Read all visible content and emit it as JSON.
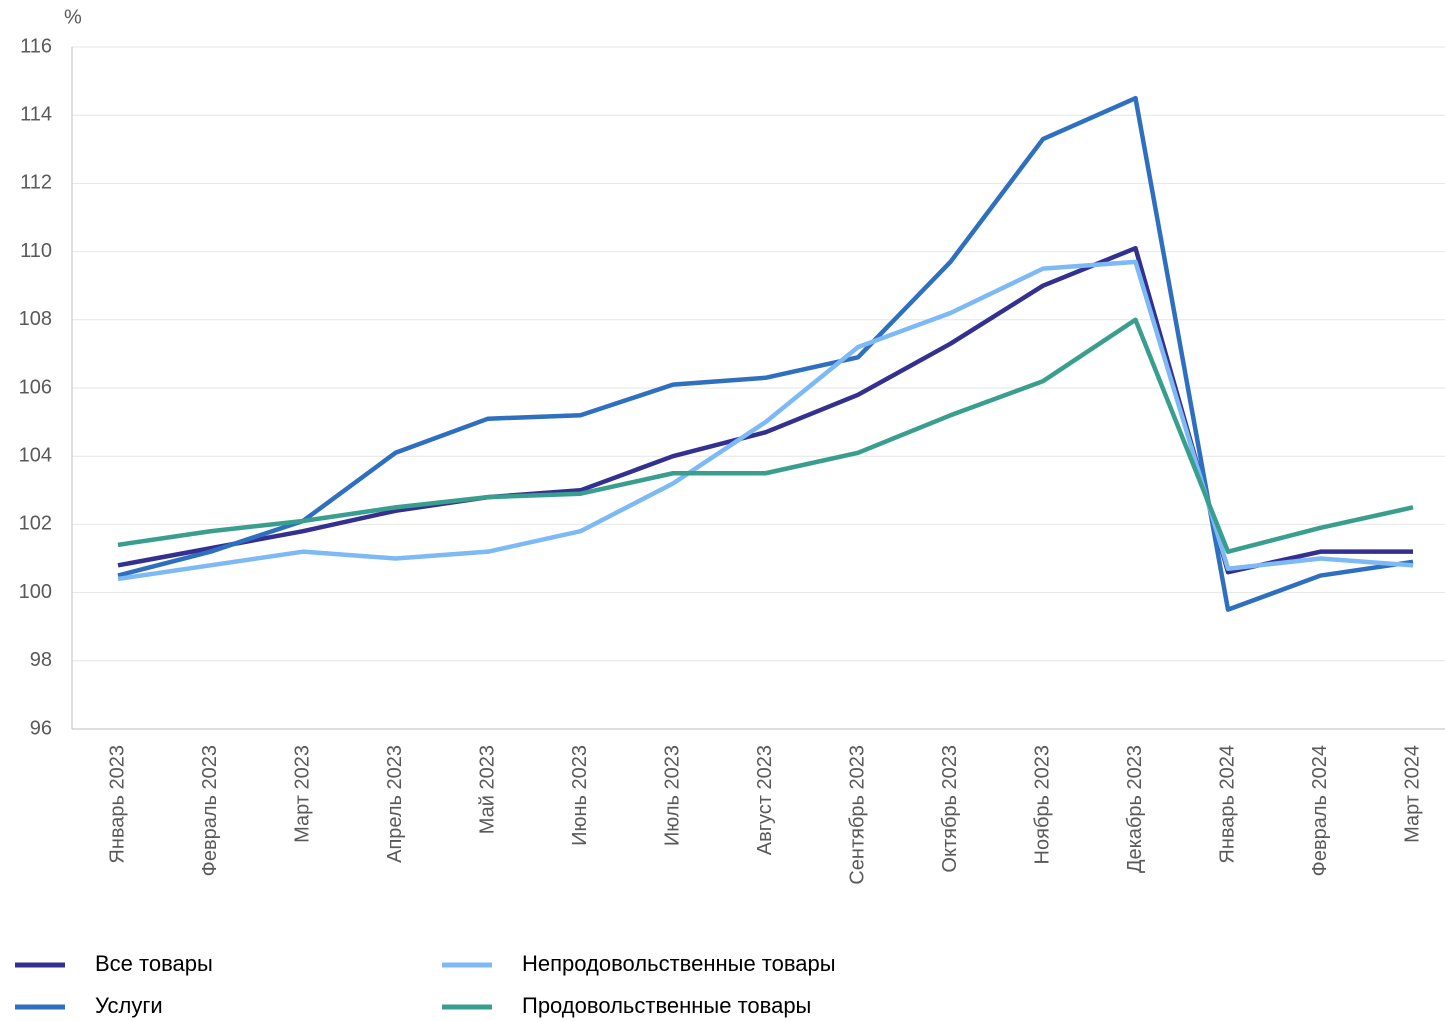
{
  "chart_data": {
    "type": "line",
    "y_unit": "%",
    "categories": [
      "Январь 2023",
      "Февраль 2023",
      "Март 2023",
      "Апрель 2023",
      "Май 2023",
      "Июнь 2023",
      "Июль 2023",
      "Август 2023",
      "Сентябрь 2023",
      "Октябрь 2023",
      "Ноябрь 2023",
      "Декабрь 2023",
      "Январь 2024",
      "Февраль 2024",
      "Март 2024"
    ],
    "series": [
      {
        "name": "Все товары",
        "color": "#33308f",
        "values": [
          100.8,
          101.3,
          101.8,
          102.4,
          102.8,
          103.0,
          104.0,
          104.7,
          105.8,
          107.3,
          109.0,
          110.1,
          100.6,
          101.2,
          101.2
        ]
      },
      {
        "name": "Услуги",
        "color": "#2f6fc0",
        "values": [
          100.5,
          101.2,
          102.1,
          104.1,
          105.1,
          105.2,
          106.1,
          106.3,
          106.9,
          109.7,
          113.3,
          114.5,
          99.5,
          100.5,
          100.9
        ]
      },
      {
        "name": "Непродовольственные товары",
        "color": "#7db9f5",
        "values": [
          100.4,
          100.8,
          101.2,
          101.0,
          101.2,
          101.8,
          103.2,
          105.0,
          107.2,
          108.2,
          109.5,
          109.7,
          100.7,
          101.0,
          100.8
        ]
      },
      {
        "name": "Продовольственные товары",
        "color": "#3a9e8f",
        "values": [
          101.4,
          101.8,
          102.1,
          102.5,
          102.8,
          102.9,
          103.5,
          103.5,
          104.1,
          105.2,
          106.2,
          108.0,
          101.2,
          101.9,
          102.5
        ]
      }
    ],
    "ylim": [
      96,
      116
    ],
    "yticks": [
      96,
      98,
      100,
      102,
      104,
      106,
      108,
      110,
      112,
      114,
      116
    ],
    "grid": true
  }
}
